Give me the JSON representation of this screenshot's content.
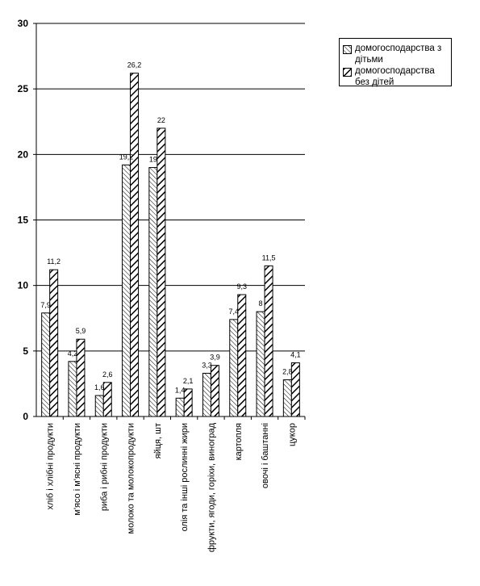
{
  "chart_data": {
    "type": "bar",
    "categories": [
      "хліб і хлібні продукти",
      "м'ясо і м'ясні продукти",
      "риба і рибні продукти",
      "молоко та молокопродукти",
      "яйця, шт",
      "олія та інші рослинні жири",
      "фрукти, ягоди, горіхи, виноград",
      "картопля",
      "овочі і баштанні",
      "цукор"
    ],
    "series": [
      {
        "name": "домогосподарства з дітьми",
        "values": [
          7.9,
          4.2,
          1.6,
          19.2,
          19,
          1.4,
          3.3,
          7.4,
          8,
          2.8
        ],
        "labels": [
          "7,9",
          "4,2",
          "1,6",
          "19,2",
          "19",
          "1,4",
          "3,3",
          "7,4",
          "8",
          "2,8"
        ]
      },
      {
        "name": "домогосподарства без дітей",
        "values": [
          11.2,
          5.9,
          2.6,
          26.2,
          22,
          2.1,
          3.9,
          9.3,
          11.5,
          4.1
        ],
        "labels": [
          "11,2",
          "5,9",
          "2,6",
          "26,2",
          "22",
          "2,1",
          "3,9",
          "9,3",
          "11,5",
          "4,1"
        ]
      }
    ],
    "yticks": [
      "0",
      "5",
      "10",
      "15",
      "20",
      "25",
      "30"
    ],
    "ylim": [
      0,
      30
    ],
    "grid": true,
    "legend_position": "top-right",
    "title": "",
    "xlabel": "",
    "ylabel": ""
  },
  "legend": {
    "item1": "домогосподарства з дітьми",
    "item2": "домогосподарства без дітей"
  }
}
